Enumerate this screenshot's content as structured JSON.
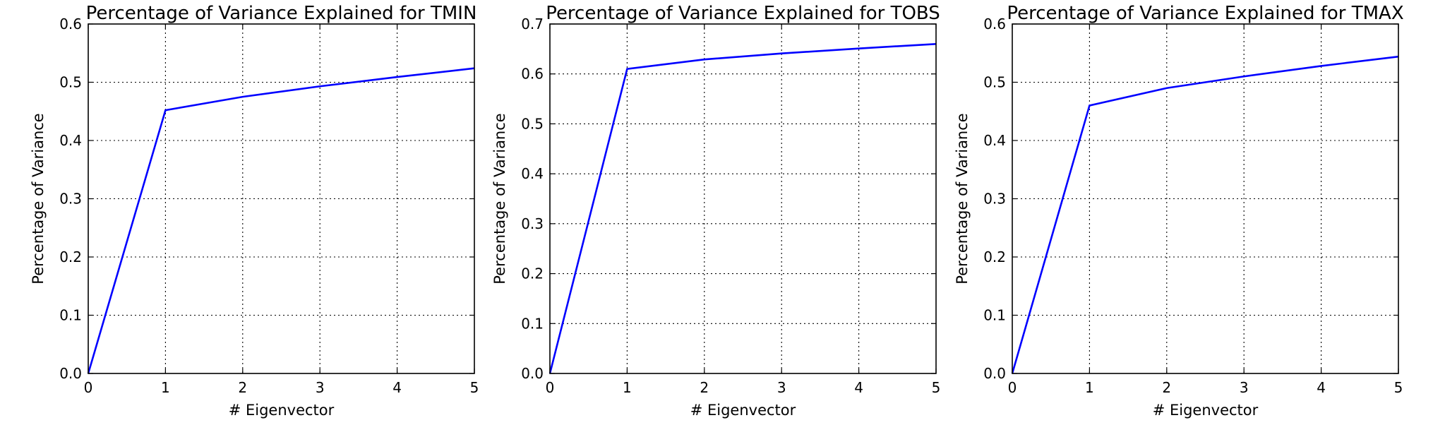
{
  "chart_data": [
    {
      "type": "line",
      "title": "Percentage of Variance Explained for TMIN",
      "xlabel": "# Eigenvector",
      "ylabel": "Percentage of Variance",
      "xlim": [
        0,
        5
      ],
      "ylim": [
        0,
        0.6
      ],
      "xticks": [
        "0",
        "1",
        "2",
        "3",
        "4",
        "5"
      ],
      "yticks": [
        "0.0",
        "0.1",
        "0.2",
        "0.3",
        "0.4",
        "0.5",
        "0.6"
      ],
      "grid": true,
      "x": [
        0,
        1,
        2,
        3,
        4,
        5
      ],
      "series": [
        {
          "values": [
            0.0,
            0.452,
            0.475,
            0.493,
            0.509,
            0.524
          ],
          "color": "#0000ff"
        }
      ]
    },
    {
      "type": "line",
      "title": "Percentage of Variance Explained for TOBS",
      "xlabel": "# Eigenvector",
      "ylabel": "Percentage of Variance",
      "xlim": [
        0,
        5
      ],
      "ylim": [
        0,
        0.7
      ],
      "xticks": [
        "0",
        "1",
        "2",
        "3",
        "4",
        "5"
      ],
      "yticks": [
        "0.0",
        "0.1",
        "0.2",
        "0.3",
        "0.4",
        "0.5",
        "0.6",
        "0.7"
      ],
      "grid": true,
      "x": [
        0,
        1,
        2,
        3,
        4,
        5
      ],
      "series": [
        {
          "values": [
            0.0,
            0.61,
            0.629,
            0.641,
            0.651,
            0.66
          ],
          "color": "#0000ff"
        }
      ]
    },
    {
      "type": "line",
      "title": "Percentage of Variance Explained for TMAX",
      "xlabel": "# Eigenvector",
      "ylabel": "Percentage of Variance",
      "xlim": [
        0,
        5
      ],
      "ylim": [
        0,
        0.6
      ],
      "xticks": [
        "0",
        "1",
        "2",
        "3",
        "4",
        "5"
      ],
      "yticks": [
        "0.0",
        "0.1",
        "0.2",
        "0.3",
        "0.4",
        "0.5",
        "0.6"
      ],
      "grid": true,
      "x": [
        0,
        1,
        2,
        3,
        4,
        5
      ],
      "series": [
        {
          "values": [
            0.0,
            0.46,
            0.49,
            0.51,
            0.528,
            0.544
          ],
          "color": "#0000ff"
        }
      ]
    }
  ]
}
